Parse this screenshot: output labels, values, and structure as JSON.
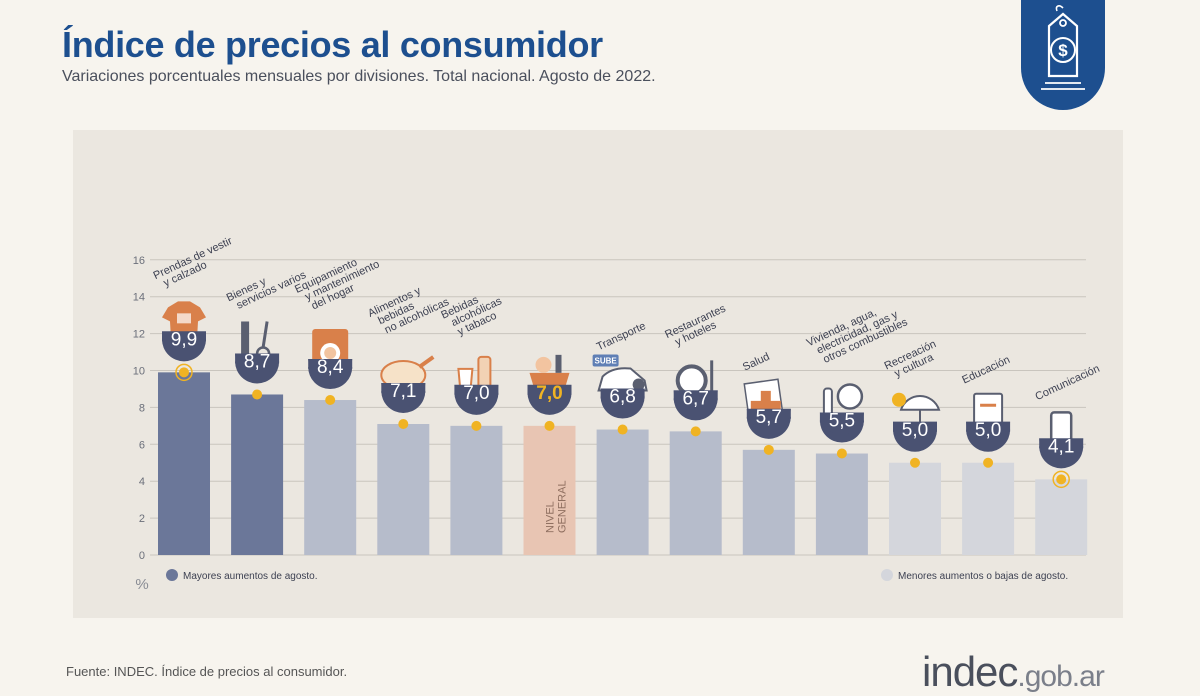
{
  "header": {
    "title": "Índice de precios al consumidor",
    "subtitle": "Variaciones porcentuales mensuales por divisiones. Total nacional. Agosto de 2022."
  },
  "footer": {
    "source": "Fuente: INDEC. Índice de precios al consumidor.",
    "site_main": "indec",
    "site_suffix": ".gob.ar"
  },
  "badge": {
    "icon": "price-tag-dollar-icon"
  },
  "colors": {
    "title": "#1d4f8f",
    "top": "#6b7799",
    "mid": "#b6bccb",
    "low": "#d4d6dc",
    "general": "#e8c5b3",
    "dot": "#f0b323",
    "bubble": "#4a5272",
    "general_value": "#f0b323",
    "grid": "#c9c5be"
  },
  "chart_data": {
    "type": "bar",
    "ylim": [
      0,
      16
    ],
    "yticks": [
      0,
      2,
      4,
      6,
      8,
      10,
      12,
      14,
      16
    ],
    "ylabel": "%",
    "grid": true,
    "legend": {
      "top": "Mayores aumentos de agosto.",
      "low": "Menores aumentos o bajas de agosto."
    },
    "categories": [
      {
        "label": [
          "Prendas de vestir",
          "y calzado"
        ],
        "value": 9.9,
        "display": "9,9",
        "group": "top",
        "icon": "shirt-icon",
        "highlight": true
      },
      {
        "label": [
          "Bienes y",
          "servicios varios"
        ],
        "value": 8.7,
        "display": "8,7",
        "group": "top",
        "icon": "comb-scissors-icon"
      },
      {
        "label": [
          "Equipamiento",
          "y mantenimiento",
          "del hogar"
        ],
        "value": 8.4,
        "display": "8,4",
        "group": "mid",
        "icon": "washing-machine-icon"
      },
      {
        "label": [
          "Alimentos y",
          "bebidas",
          "no alcohólicas"
        ],
        "value": 7.1,
        "display": "7,1",
        "group": "mid",
        "icon": "roast-chicken-icon"
      },
      {
        "label": [
          "Bebidas",
          "alcohólicas",
          "y tabaco"
        ],
        "value": 7.0,
        "display": "7,0",
        "group": "mid",
        "icon": "bottle-glass-icon"
      },
      {
        "label": [],
        "value": 7.0,
        "display": "7,0",
        "group": "general",
        "icon": "shopping-basket-icon",
        "inner_label": [
          "NIVEL",
          "GENERAL"
        ]
      },
      {
        "label": [
          "Transporte"
        ],
        "value": 6.8,
        "display": "6,8",
        "group": "mid",
        "icon": "car-sube-icon",
        "icon_text": "SUBE"
      },
      {
        "label": [
          "Restaurantes",
          "y hoteles"
        ],
        "value": 6.7,
        "display": "6,7",
        "group": "mid",
        "icon": "plate-cutlery-icon"
      },
      {
        "label": [
          "Salud"
        ],
        "value": 5.7,
        "display": "5,7",
        "group": "mid",
        "icon": "medical-cross-icon"
      },
      {
        "label": [
          "Vivienda, agua,",
          "electricidad, gas y",
          "otros combustibles"
        ],
        "value": 5.5,
        "display": "5,5",
        "group": "mid",
        "icon": "lightbulb-icon"
      },
      {
        "label": [
          "Recreación",
          "y cultura"
        ],
        "value": 5.0,
        "display": "5,0",
        "group": "low",
        "icon": "beach-umbrella-icon"
      },
      {
        "label": [
          "Educación"
        ],
        "value": 5.0,
        "display": "5,0",
        "group": "low",
        "icon": "notebook-icon"
      },
      {
        "label": [
          "Comunicación"
        ],
        "value": 4.1,
        "display": "4,1",
        "group": "low",
        "icon": "smartphone-icon",
        "highlight": true
      }
    ]
  }
}
